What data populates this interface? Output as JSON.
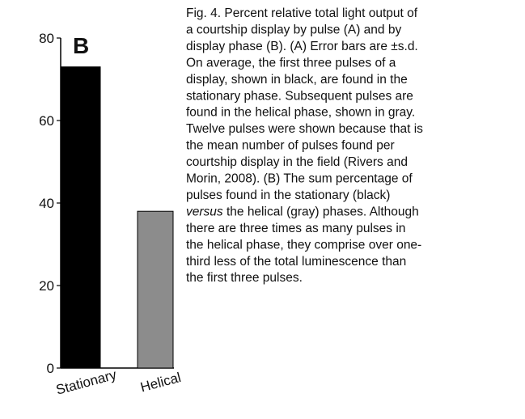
{
  "chart_data": {
    "type": "bar",
    "panel_label": "B",
    "categories": [
      "Stationary",
      "Helical"
    ],
    "values": [
      73,
      38
    ],
    "colors": [
      "#000000",
      "#8c8c8c"
    ],
    "ylim": [
      0,
      80
    ],
    "yticks": [
      0,
      20,
      40,
      60,
      80
    ],
    "grid": false
  },
  "caption": [
    "Fig. 4. Percent relative total light output of",
    "a courtship display by pulse (A) and by",
    "display phase (B). (A) Error bars are ±s.d.",
    "On average, the first three pulses of a",
    "display, shown in black, are found in the",
    "stationary phase. Subsequent pulses are",
    "found in the helical phase, shown in gray.",
    "Twelve pulses were shown because that is",
    "the mean number of pulses found per",
    "courtship display in the field (Rivers and",
    "Morin, 2008). (B) The sum percentage of",
    "pulses found in the stationary (black)",
    [
      "versus",
      " the helical (gray) phases. Although"
    ],
    "there are three times as many pulses in",
    "the helical phase, they comprise over one-",
    "third less of the total luminescence than",
    "the first three pulses."
  ]
}
